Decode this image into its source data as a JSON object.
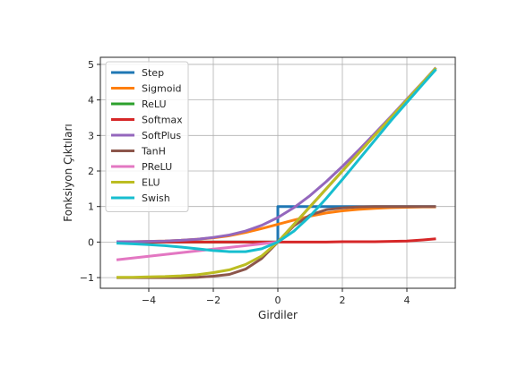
{
  "chart_data": {
    "type": "line",
    "xlabel": "Girdiler",
    "ylabel": "Fonksiyon Çıktıları",
    "xlim": [
      -5.5,
      5.5
    ],
    "ylim": [
      -1.3,
      5.2
    ],
    "xticks": [
      -4,
      -2,
      0,
      2,
      4
    ],
    "xtick_labels": [
      "−4",
      "−2",
      "0",
      "2",
      "4"
    ],
    "yticks": [
      -1,
      0,
      1,
      2,
      3,
      4,
      5
    ],
    "ytick_labels": [
      "−1",
      "0",
      "1",
      "2",
      "3",
      "4",
      "5"
    ],
    "grid": true,
    "legend_position": "top-left",
    "x": [
      -5.0,
      -4.5,
      -4.0,
      -3.5,
      -3.0,
      -2.5,
      -2.0,
      -1.5,
      -1.0,
      -0.5,
      0.0,
      0.5,
      1.0,
      1.5,
      2.0,
      2.5,
      3.0,
      3.5,
      4.0,
      4.5,
      4.9
    ],
    "series": [
      {
        "name": "Step",
        "color": "#1f77b4",
        "values": [
          0,
          0,
          0,
          0,
          0,
          0,
          0,
          0,
          0,
          0,
          1,
          1,
          1,
          1,
          1,
          1,
          1,
          1,
          1,
          1,
          1
        ]
      },
      {
        "name": "Sigmoid",
        "color": "#ff7f0e",
        "values": [
          0.01,
          0.01,
          0.02,
          0.03,
          0.05,
          0.08,
          0.12,
          0.18,
          0.27,
          0.38,
          0.5,
          0.62,
          0.73,
          0.82,
          0.88,
          0.92,
          0.95,
          0.97,
          0.98,
          0.99,
          0.99
        ]
      },
      {
        "name": "ReLU",
        "color": "#2ca02c",
        "values": [
          0,
          0,
          0,
          0,
          0,
          0,
          0,
          0,
          0,
          0,
          0,
          0.5,
          1,
          1.5,
          2,
          2.5,
          3,
          3.5,
          4,
          4.5,
          4.9
        ]
      },
      {
        "name": "Softmax",
        "color": "#d62728",
        "values": [
          0,
          0,
          0,
          0,
          0,
          0,
          0,
          0,
          0,
          0,
          0,
          0,
          0,
          0,
          0.01,
          0.01,
          0.01,
          0.02,
          0.03,
          0.06,
          0.09
        ]
      },
      {
        "name": "SoftPlus",
        "color": "#9467bd",
        "values": [
          0.01,
          0.01,
          0.02,
          0.03,
          0.05,
          0.08,
          0.13,
          0.2,
          0.31,
          0.47,
          0.69,
          0.97,
          1.31,
          1.7,
          2.13,
          2.58,
          3.05,
          3.53,
          4.02,
          4.51,
          4.91
        ]
      },
      {
        "name": "TanH",
        "color": "#8c564b",
        "values": [
          -1,
          -1,
          -1,
          -1,
          -1,
          -0.99,
          -0.96,
          -0.91,
          -0.76,
          -0.46,
          0,
          0.46,
          0.76,
          0.91,
          0.96,
          0.99,
          1,
          1,
          1,
          1,
          1
        ]
      },
      {
        "name": "PReLU",
        "color": "#e377c2",
        "values": [
          -0.5,
          -0.45,
          -0.4,
          -0.35,
          -0.3,
          -0.25,
          -0.2,
          -0.15,
          -0.1,
          -0.05,
          0,
          0.5,
          1,
          1.5,
          2,
          2.5,
          3,
          3.5,
          4,
          4.5,
          4.9
        ]
      },
      {
        "name": "ELU",
        "color": "#bcbd22",
        "values": [
          -0.99,
          -0.99,
          -0.98,
          -0.97,
          -0.95,
          -0.92,
          -0.86,
          -0.78,
          -0.63,
          -0.39,
          0,
          0.5,
          1,
          1.5,
          2,
          2.5,
          3,
          3.5,
          4,
          4.5,
          4.9
        ]
      },
      {
        "name": "Swish",
        "color": "#17becf",
        "values": [
          -0.03,
          -0.05,
          -0.07,
          -0.1,
          -0.14,
          -0.19,
          -0.24,
          -0.27,
          -0.27,
          -0.19,
          0,
          0.31,
          0.73,
          1.23,
          1.76,
          2.31,
          2.86,
          3.41,
          3.93,
          4.45,
          4.86
        ]
      }
    ]
  }
}
